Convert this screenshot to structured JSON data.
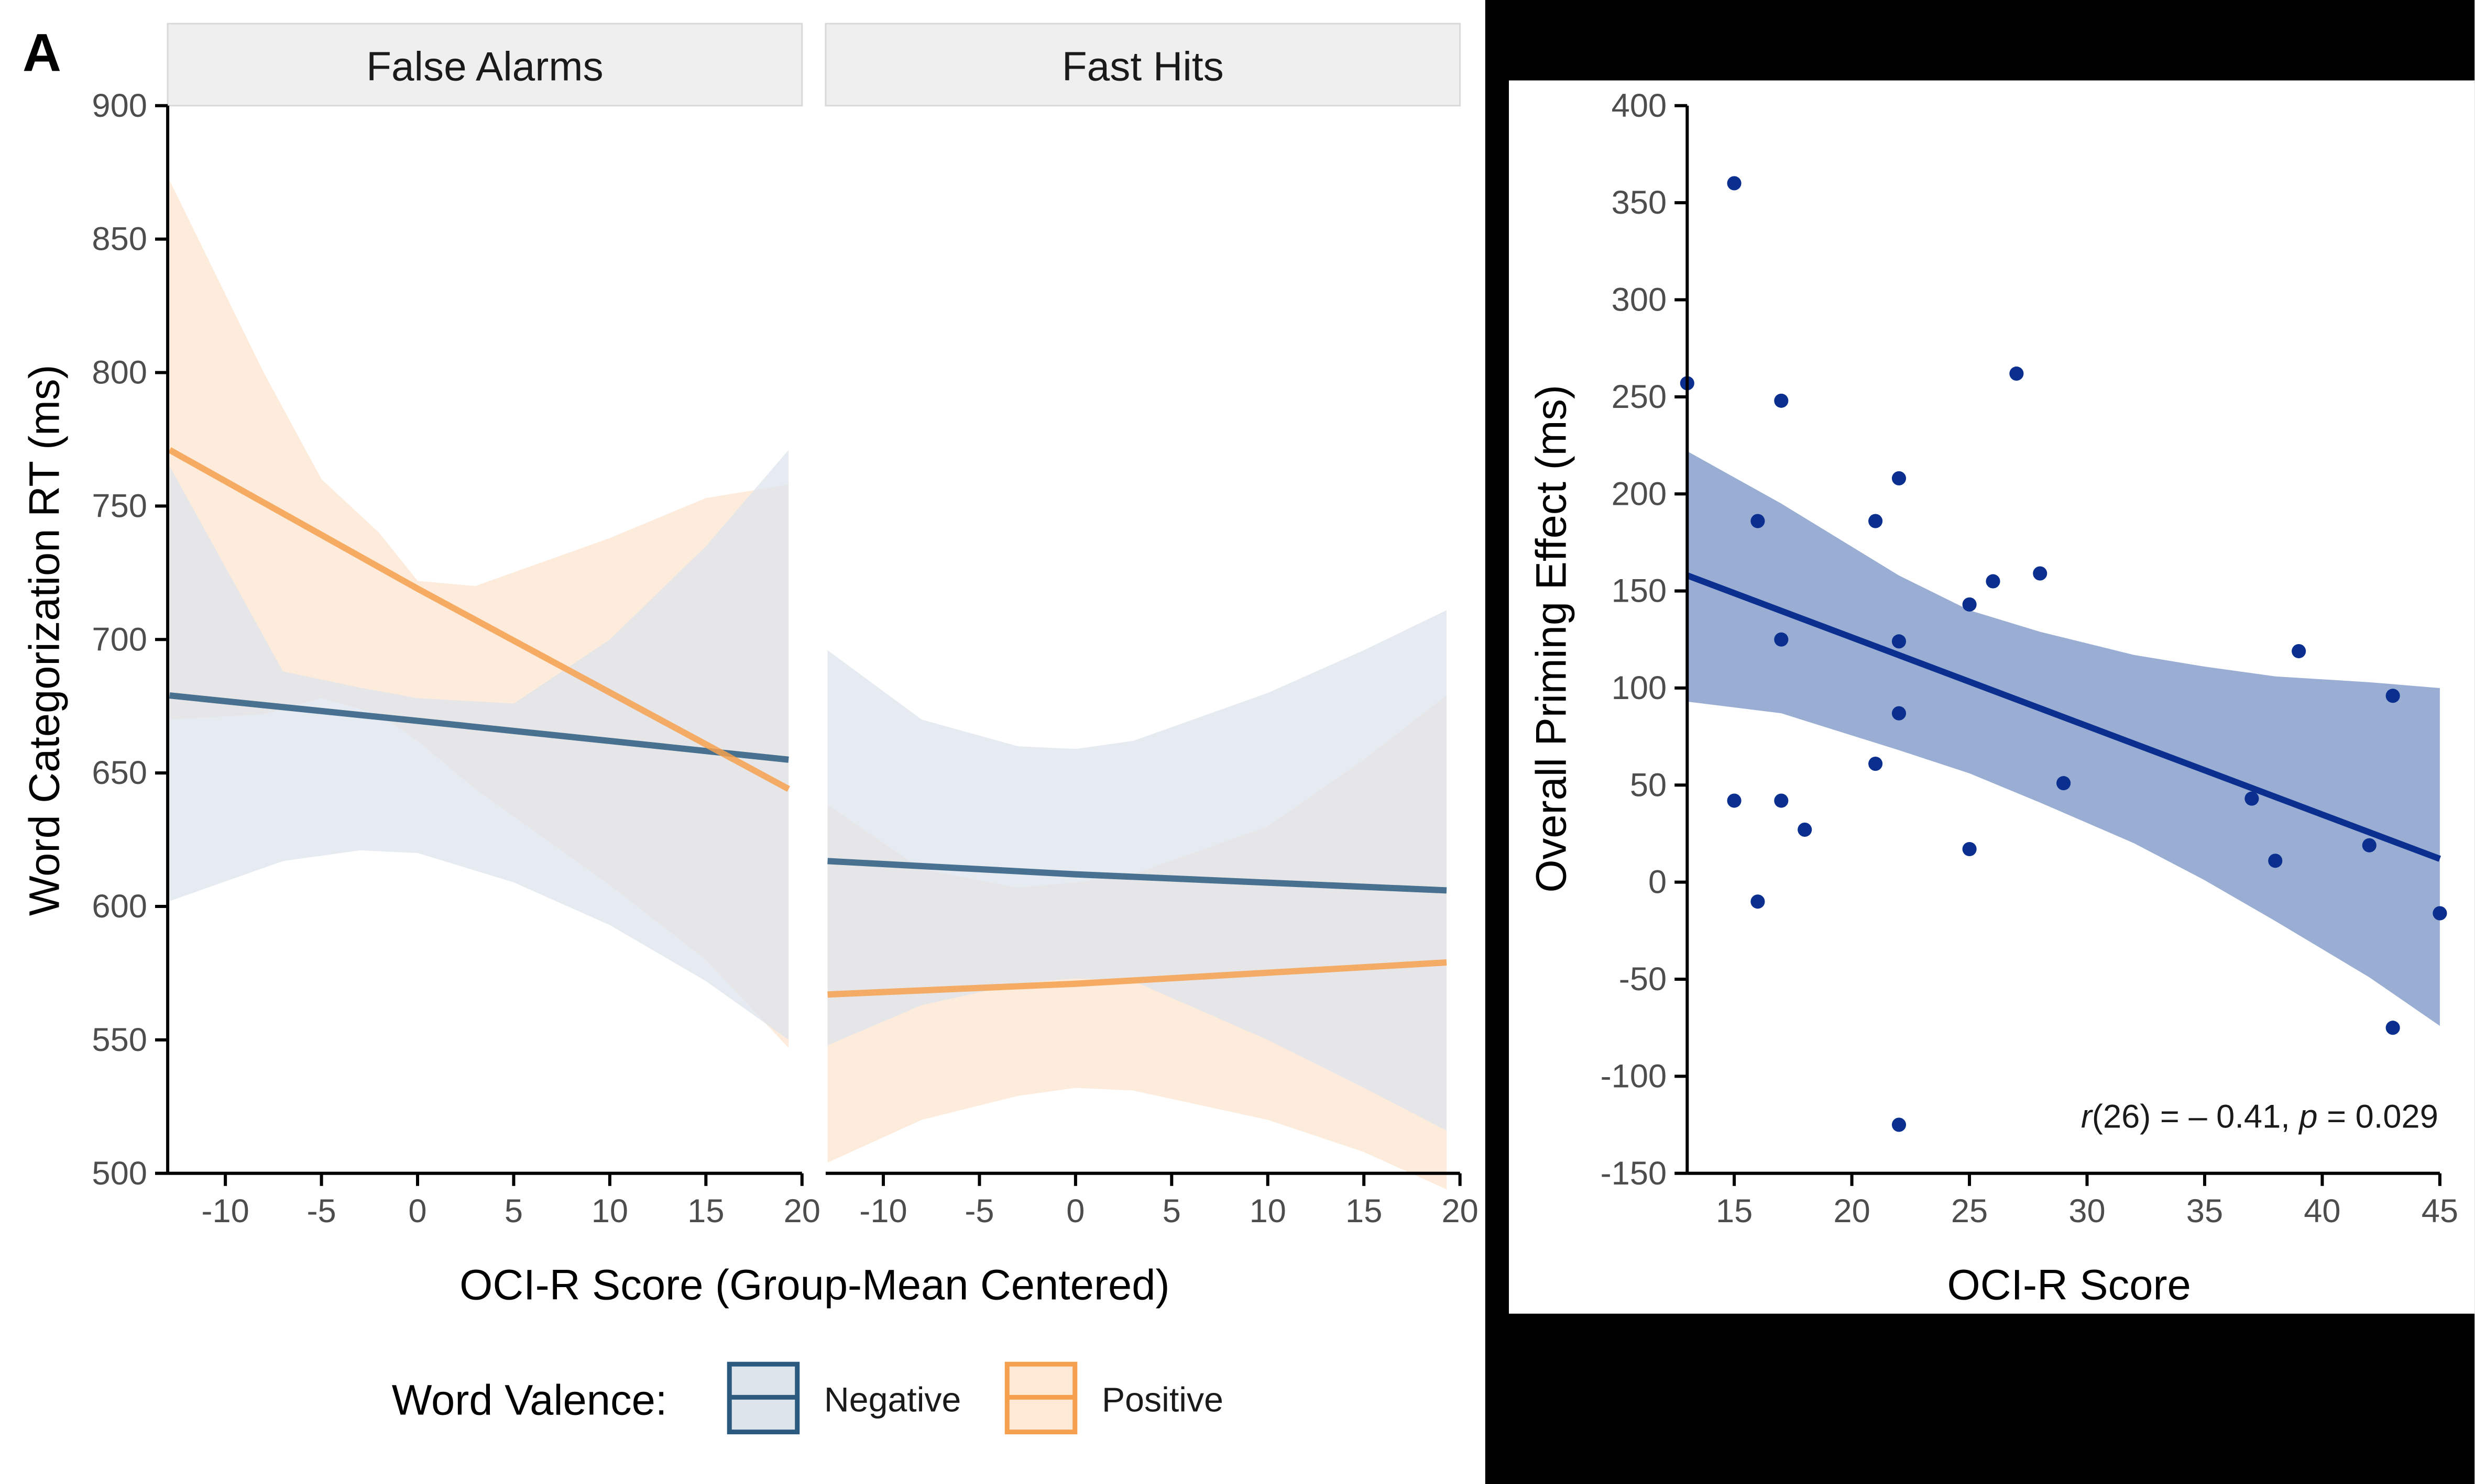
{
  "panel_label": "A",
  "chart_data": [
    {
      "type": "line",
      "subtype": "faceted regression lines with confidence bands",
      "facets": [
        "False Alarms",
        "Fast Hits"
      ],
      "xlabel": "OCI-R Score (Group-Mean Centered)",
      "ylabel": "Word Categorization RT (ms)",
      "xlim": [
        -13,
        20
      ],
      "ylim": [
        500,
        900
      ],
      "xticks": [
        -10,
        -5,
        0,
        5,
        10,
        15,
        20
      ],
      "yticks": [
        500,
        550,
        600,
        650,
        700,
        750,
        800,
        850,
        900
      ],
      "legend": {
        "title": "Word Valence:",
        "position": "bottom",
        "entries": [
          "Negative",
          "Positive"
        ]
      },
      "colors": {
        "Negative": "#2c5a7f",
        "Positive": "#f5a04e",
        "Negative_band": "#dde4ec",
        "Positive_band": "#fde9d6",
        "strip": "#efefef"
      },
      "x": [
        -12.9,
        0,
        19.3
      ],
      "series": [
        {
          "name": "Negative",
          "facet": "False Alarms",
          "fit": [
            679,
            669.5,
            655
          ],
          "band": [
            [
              -12.9,
              602,
              765
            ],
            [
              -7,
              617,
              688
            ],
            [
              -3,
              621,
              682
            ],
            [
              0,
              620,
              678
            ],
            [
              5,
              609,
              676
            ],
            [
              10,
              593,
              700
            ],
            [
              15,
              572,
              735
            ],
            [
              19.3,
              550,
              771
            ]
          ]
        },
        {
          "name": "Positive",
          "facet": "False Alarms",
          "fit": [
            771,
            719,
            644
          ],
          "band": [
            [
              -12.9,
              670,
              872
            ],
            [
              -8,
              672,
              800
            ],
            [
              -5,
              678,
              760
            ],
            [
              -2,
              672,
              740
            ],
            [
              0,
              662,
              722
            ],
            [
              3,
              644,
              720
            ],
            [
              10,
              608,
              738
            ],
            [
              15,
              580,
              753
            ],
            [
              19.3,
              547,
              758
            ]
          ]
        },
        {
          "name": "Negative",
          "facet": "Fast Hits",
          "fit": [
            617,
            612,
            606
          ],
          "band": [
            [
              -12.9,
              548,
              696
            ],
            [
              -8,
              563,
              670
            ],
            [
              -3,
              571,
              660
            ],
            [
              0,
              573,
              659
            ],
            [
              3,
              572,
              662
            ],
            [
              10,
              550,
              680
            ],
            [
              15,
              532,
              696
            ],
            [
              19.3,
              516,
              711
            ]
          ]
        },
        {
          "name": "Positive",
          "facet": "Fast Hits",
          "fit": [
            567,
            571,
            579
          ],
          "band": [
            [
              -12.9,
              504,
              638
            ],
            [
              -8,
              520,
              614
            ],
            [
              -3,
              529,
              607
            ],
            [
              0,
              532,
              609
            ],
            [
              3,
              531,
              612
            ],
            [
              10,
              520,
              630
            ],
            [
              15,
              508,
              655
            ],
            [
              19.3,
              494,
              679
            ]
          ]
        }
      ]
    },
    {
      "type": "scatter",
      "xlabel": "OCI-R Score",
      "ylabel": "Overall Priming Effect (ms)",
      "xlim": [
        13,
        45
      ],
      "ylim": [
        -150,
        400
      ],
      "xticks": [
        15,
        20,
        25,
        30,
        35,
        40,
        45
      ],
      "yticks": [
        -150,
        -100,
        -50,
        0,
        50,
        100,
        150,
        200,
        250,
        300,
        350,
        400
      ],
      "annotation": {
        "r": "r",
        "df": "(26)",
        "eq1": " = ",
        "r_value": "– 0.41, ",
        "p": "p",
        "eq2": " = 0.029"
      },
      "colors": {
        "points": "#0a2f8f",
        "line": "#0a2f8f",
        "band": "#9aaed4"
      },
      "x": [
        13,
        15,
        15,
        16,
        16,
        17,
        17,
        17,
        18,
        21,
        21,
        22,
        22,
        22,
        22,
        25,
        25,
        26,
        27,
        28,
        29,
        37,
        38,
        39,
        42,
        43,
        43,
        45
      ],
      "y": [
        257,
        360,
        42,
        186,
        -10,
        248,
        125,
        42,
        27,
        186,
        61,
        208,
        124,
        87,
        -125,
        143,
        17,
        155,
        262,
        159,
        51,
        43,
        11,
        119,
        19,
        96,
        -75,
        -16
      ],
      "fit": {
        "x": [
          13,
          45
        ],
        "y": [
          158,
          12
        ]
      },
      "band": [
        [
          13,
          93,
          222
        ],
        [
          17,
          87,
          195
        ],
        [
          22,
          68,
          158
        ],
        [
          25,
          56,
          140
        ],
        [
          28,
          41,
          129
        ],
        [
          32,
          20,
          117
        ],
        [
          35,
          1,
          111
        ],
        [
          38,
          -20,
          106
        ],
        [
          42,
          -49,
          103
        ],
        [
          45,
          -74,
          100
        ]
      ]
    }
  ]
}
